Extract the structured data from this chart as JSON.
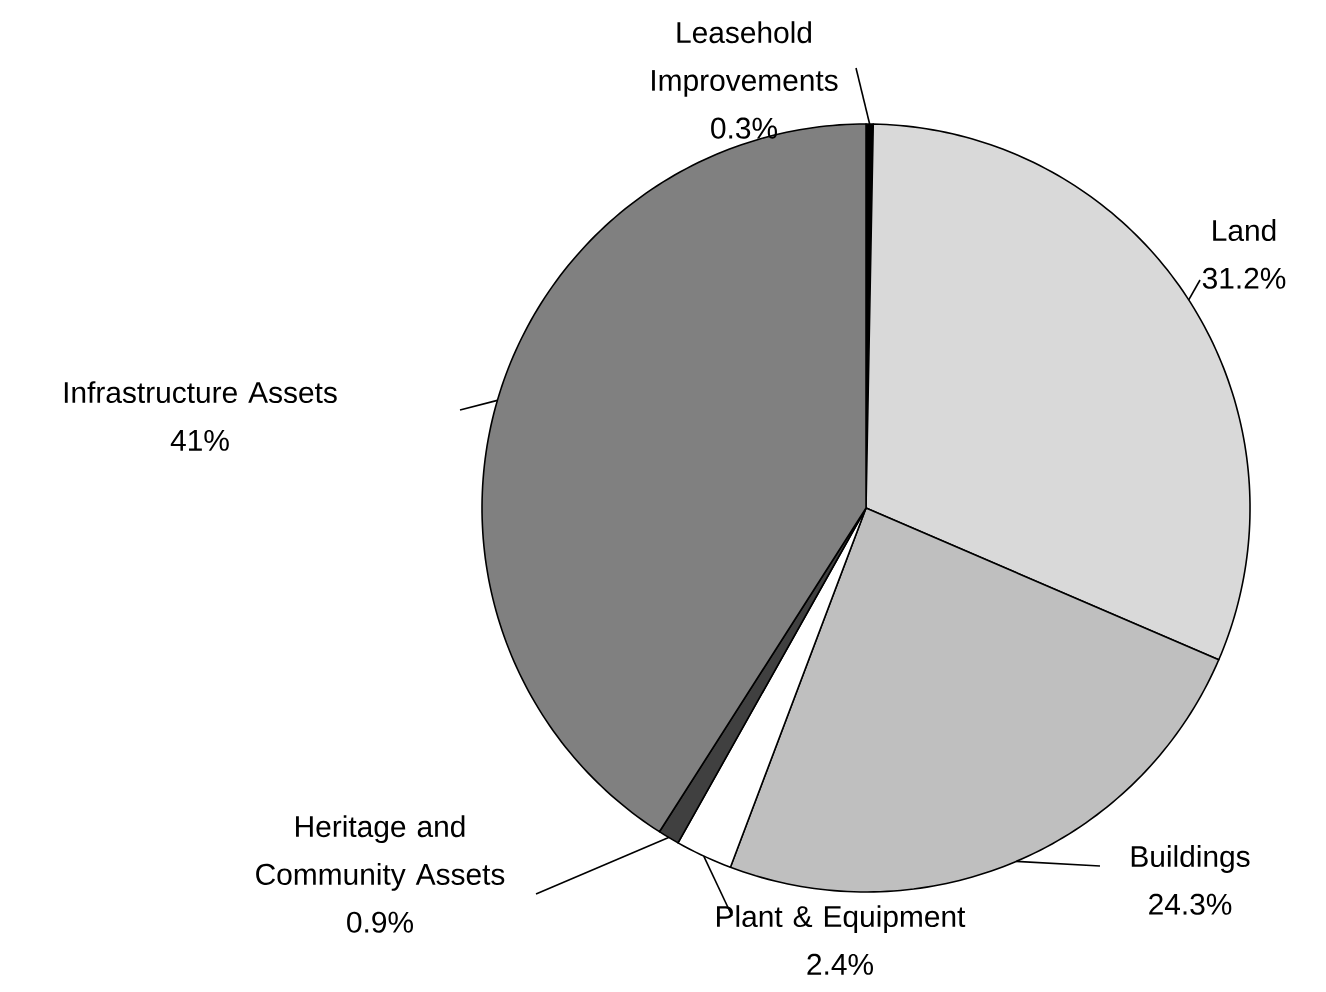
{
  "chart_data": {
    "type": "pie",
    "categories": [
      "Leasehold Improvements",
      "Land",
      "Buildings",
      "Plant & Equipment",
      "Heritage and Community Assets",
      "Infrastructure Assets"
    ],
    "values": [
      0.3,
      31.2,
      24.3,
      2.4,
      0.9,
      41
    ],
    "value_labels": [
      "0.3%",
      "31.2%",
      "24.3%",
      "2.4%",
      "0.9%",
      "41%"
    ],
    "colors": [
      "#000000",
      "#d9d9d9",
      "#bfbfbf",
      "#ffffff",
      "#404040",
      "#808080"
    ]
  }
}
